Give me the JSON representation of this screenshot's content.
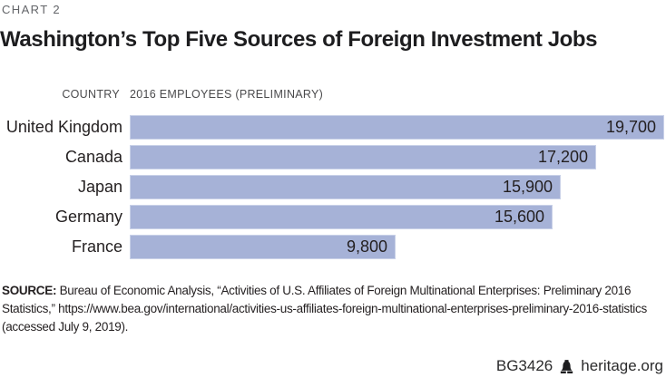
{
  "meta": {
    "chart_label": "CHART 2"
  },
  "title": "Washington’s Top Five Sources of Foreign Investment Jobs",
  "header": {
    "country": "COUNTRY",
    "employees": "2016 EMPLOYEES (PRELIMINARY)"
  },
  "chart_data": {
    "type": "bar",
    "orientation": "horizontal",
    "title": "Washington’s Top Five Sources of Foreign Investment Jobs",
    "xlabel": "2016 EMPLOYEES (PRELIMINARY)",
    "ylabel": "COUNTRY",
    "categories": [
      "United Kingdom",
      "Canada",
      "Japan",
      "Germany",
      "France"
    ],
    "values": [
      19700,
      17200,
      15900,
      15600,
      9800
    ],
    "value_labels": [
      "19,700",
      "17,200",
      "15,900",
      "15,600",
      "9,800"
    ],
    "xlim": [
      0,
      19700
    ],
    "grid": false,
    "legend": "none",
    "bar_color": "#a6b2d7",
    "bar_border_color": "#c9d1e8",
    "value_label_position": "inside-end"
  },
  "source": {
    "label": "SOURCE:",
    "text": " Bureau of Economic Analysis, “Activities of U.S. Affiliates of Foreign Multinational Enterprises: Preliminary 2016 Statistics,” https://www.bea.gov/international/activities-us-affiliates-foreign-multinational-enterprises-preliminary-2016-statistics (accessed July 9, 2019)."
  },
  "footer": {
    "report_id": "BG3426",
    "logo_icon": "liberty-bell-icon",
    "site": "heritage.org"
  }
}
